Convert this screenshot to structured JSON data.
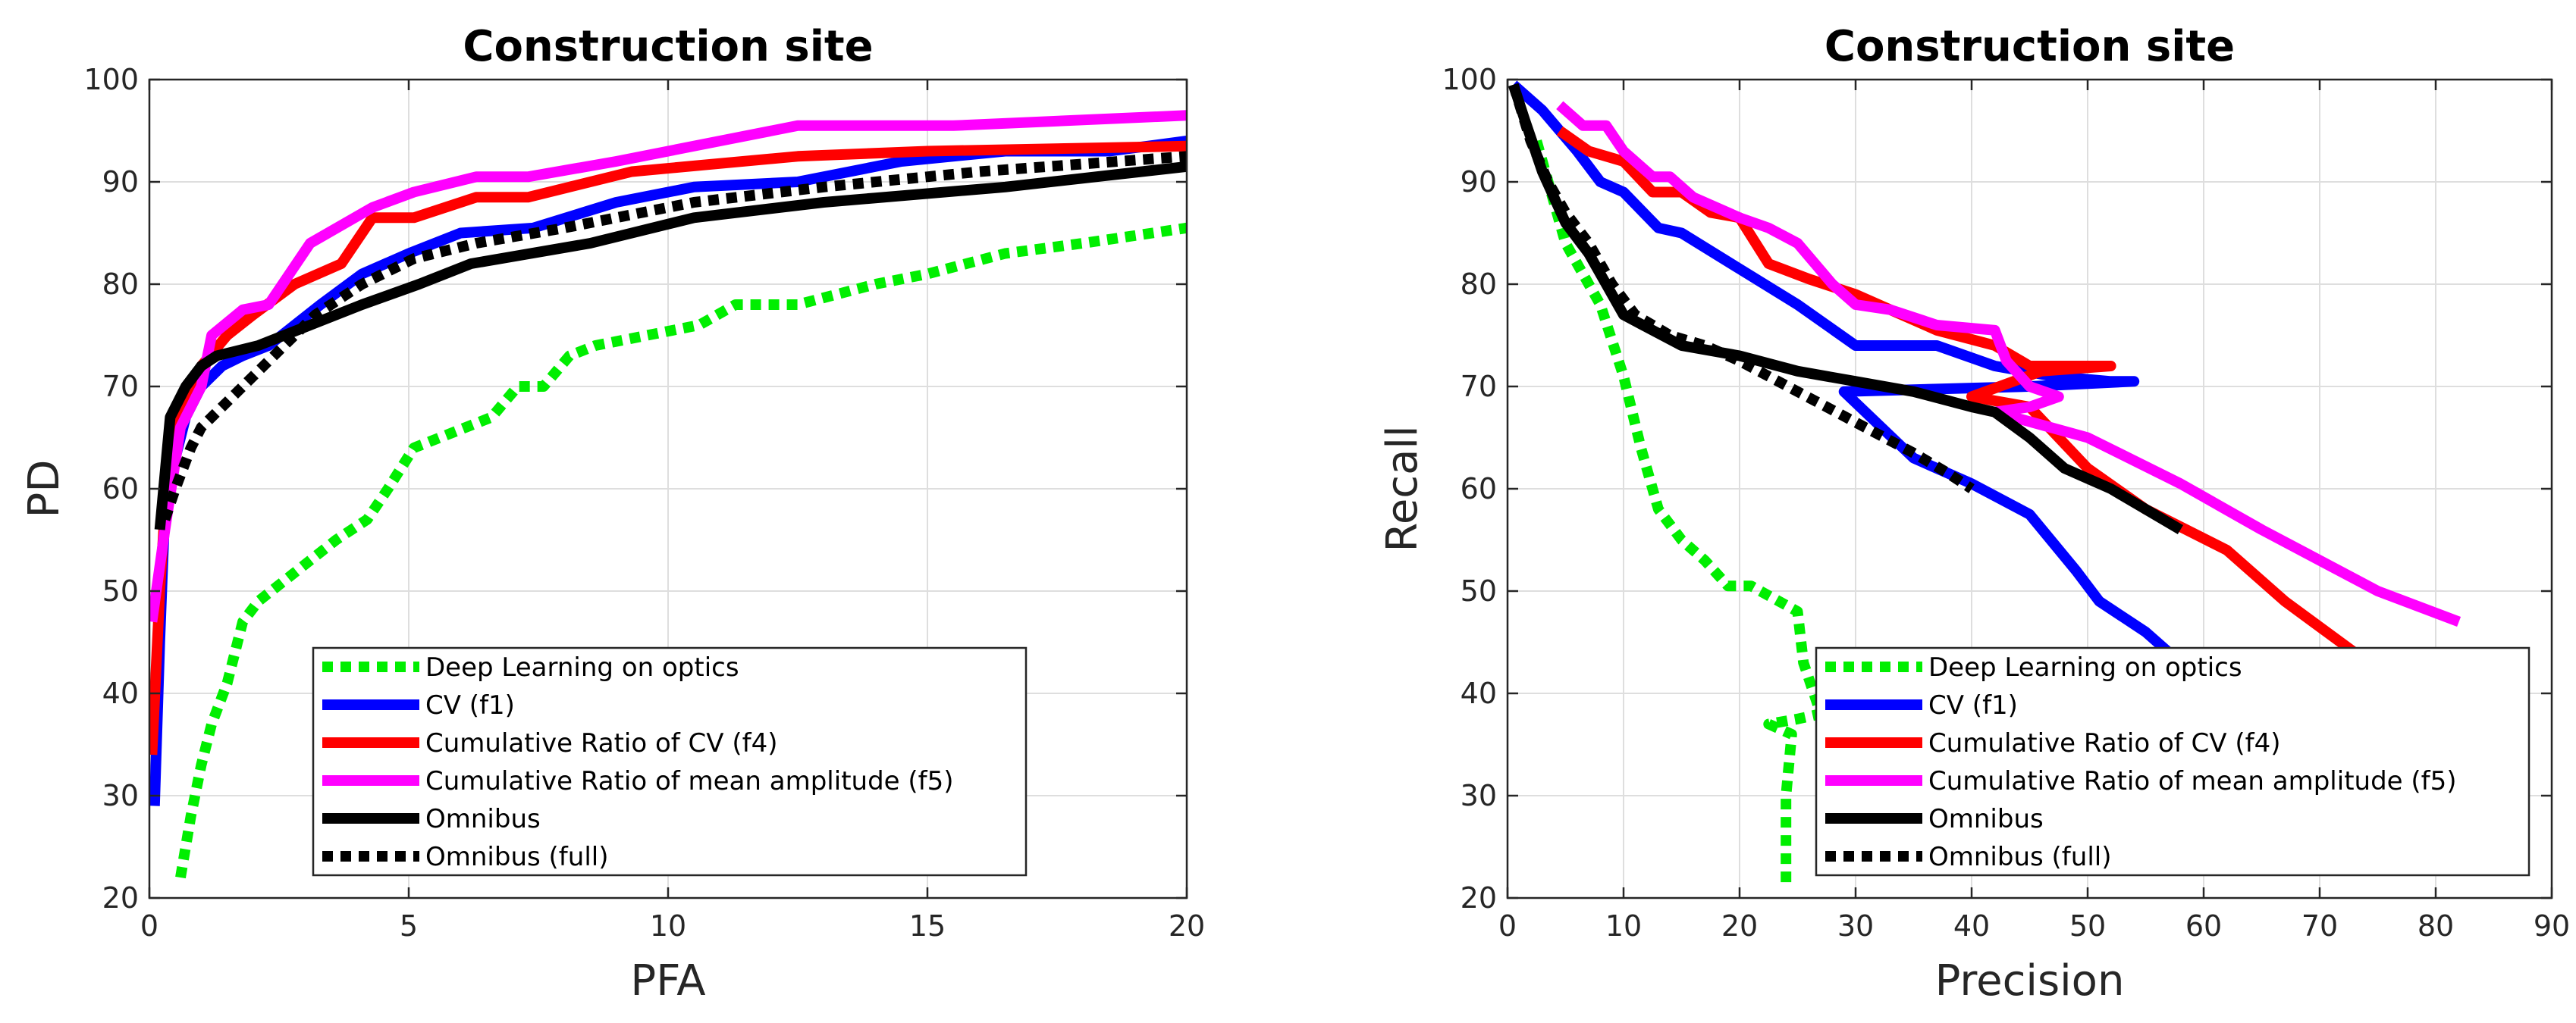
{
  "chart_data": [
    {
      "type": "line",
      "title": "Construction site",
      "xlabel": "PFA",
      "ylabel": "PD",
      "xlim": [
        0,
        20
      ],
      "ylim": [
        20,
        100
      ],
      "xticks": [
        0,
        5,
        10,
        15,
        20
      ],
      "yticks": [
        20,
        30,
        40,
        50,
        60,
        70,
        80,
        90,
        100
      ],
      "grid": true,
      "legend_position": "bottom-right",
      "series": [
        {
          "name": "Deep Learning on optics",
          "color": "#00ee00",
          "dash": "dotted",
          "points": [
            [
              0.6,
              22
            ],
            [
              0.8,
              28
            ],
            [
              1.0,
              33
            ],
            [
              1.2,
              37
            ],
            [
              1.5,
              41
            ],
            [
              1.8,
              47
            ],
            [
              2.1,
              49
            ],
            [
              2.6,
              51
            ],
            [
              3.1,
              53
            ],
            [
              3.6,
              55
            ],
            [
              4.2,
              57
            ],
            [
              4.6,
              60
            ],
            [
              5.1,
              64
            ],
            [
              5.6,
              65
            ],
            [
              6.1,
              66
            ],
            [
              6.6,
              67
            ],
            [
              7.1,
              70
            ],
            [
              7.6,
              70
            ],
            [
              8.1,
              73
            ],
            [
              8.6,
              74
            ],
            [
              9.6,
              75
            ],
            [
              10.6,
              76
            ],
            [
              11.3,
              78
            ],
            [
              12.5,
              78
            ],
            [
              14,
              80
            ],
            [
              15,
              81
            ],
            [
              16.5,
              83
            ],
            [
              18,
              84
            ],
            [
              20,
              85.5
            ]
          ]
        },
        {
          "name": "CV (f1)",
          "color": "#0000ff",
          "dash": "solid",
          "points": [
            [
              0.1,
              29
            ],
            [
              0.2,
              45
            ],
            [
              0.3,
              58
            ],
            [
              0.5,
              63
            ],
            [
              0.7,
              67
            ],
            [
              1.0,
              70
            ],
            [
              1.4,
              72
            ],
            [
              1.8,
              73
            ],
            [
              2.3,
              74
            ],
            [
              2.8,
              76
            ],
            [
              3.3,
              78
            ],
            [
              4.1,
              81
            ],
            [
              5.0,
              83
            ],
            [
              6.0,
              85
            ],
            [
              7.4,
              85.5
            ],
            [
              9.0,
              88
            ],
            [
              10.5,
              89.5
            ],
            [
              12.5,
              90
            ],
            [
              14.5,
              92
            ],
            [
              16.5,
              93
            ],
            [
              18.5,
              93
            ],
            [
              20,
              94
            ]
          ]
        },
        {
          "name": "Cumulative Ratio of CV (f4)",
          "color": "#ff0000",
          "dash": "solid",
          "points": [
            [
              0.05,
              34
            ],
            [
              0.2,
              50
            ],
            [
              0.4,
              66
            ],
            [
              0.7,
              69
            ],
            [
              1.0,
              72
            ],
            [
              1.5,
              75
            ],
            [
              2.0,
              77
            ],
            [
              2.8,
              80
            ],
            [
              3.7,
              82
            ],
            [
              4.3,
              86.5
            ],
            [
              5.1,
              86.5
            ],
            [
              6.3,
              88.5
            ],
            [
              7.3,
              88.5
            ],
            [
              9.3,
              91
            ],
            [
              12.5,
              92.5
            ],
            [
              15.0,
              93
            ],
            [
              20,
              93.5
            ]
          ]
        },
        {
          "name": "Cumulative Ratio of mean amplitude (f5)",
          "color": "#ff00ff",
          "dash": "solid",
          "points": [
            [
              0.05,
              47
            ],
            [
              0.3,
              56
            ],
            [
              0.6,
              66
            ],
            [
              1.0,
              70
            ],
            [
              1.2,
              75
            ],
            [
              1.8,
              77.5
            ],
            [
              2.3,
              78
            ],
            [
              3.1,
              84
            ],
            [
              4.3,
              87.5
            ],
            [
              5.1,
              89
            ],
            [
              6.3,
              90.5
            ],
            [
              7.3,
              90.5
            ],
            [
              9.0,
              92
            ],
            [
              11.0,
              94
            ],
            [
              12.5,
              95.5
            ],
            [
              15.5,
              95.5
            ],
            [
              20,
              96.5
            ]
          ]
        },
        {
          "name": "Omnibus",
          "color": "#000000",
          "dash": "solid",
          "points": [
            [
              0.2,
              56
            ],
            [
              0.4,
              67
            ],
            [
              0.7,
              70
            ],
            [
              1.0,
              72
            ],
            [
              1.3,
              73
            ],
            [
              2.1,
              74
            ],
            [
              3.1,
              76
            ],
            [
              4.1,
              78
            ],
            [
              5.2,
              80
            ],
            [
              6.2,
              82
            ],
            [
              8.5,
              84
            ],
            [
              10.5,
              86.5
            ],
            [
              13.0,
              88
            ],
            [
              16.5,
              89.5
            ],
            [
              20,
              91.5
            ]
          ]
        },
        {
          "name": "Omnibus (full)",
          "color": "#000000",
          "dash": "dotted",
          "points": [
            [
              0.3,
              57
            ],
            [
              0.5,
              60
            ],
            [
              0.8,
              64
            ],
            [
              1.0,
              66
            ],
            [
              1.4,
              68
            ],
            [
              2.0,
              71
            ],
            [
              2.6,
              74
            ],
            [
              3.2,
              77
            ],
            [
              4.1,
              80
            ],
            [
              5.1,
              82.5
            ],
            [
              6.3,
              84
            ],
            [
              8.0,
              85.5
            ],
            [
              10.5,
              88
            ],
            [
              13,
              89.5
            ],
            [
              16,
              91
            ],
            [
              20,
              92.5
            ]
          ]
        }
      ]
    },
    {
      "type": "line",
      "title": "Construction site",
      "xlabel": "Precision",
      "ylabel": "Recall",
      "xlim": [
        0,
        90
      ],
      "ylim": [
        20,
        100
      ],
      "xticks": [
        0,
        10,
        20,
        30,
        40,
        50,
        60,
        70,
        80,
        90
      ],
      "yticks": [
        20,
        30,
        40,
        50,
        60,
        70,
        80,
        90,
        100
      ],
      "grid": true,
      "legend_position": "bottom-right",
      "series": [
        {
          "name": "Deep Learning on optics",
          "color": "#00ee00",
          "dash": "dotted",
          "points": [
            [
              2.5,
              94
            ],
            [
              5,
              84
            ],
            [
              8,
              78
            ],
            [
              10,
              71
            ],
            [
              11.5,
              64
            ],
            [
              13,
              58
            ],
            [
              15,
              55
            ],
            [
              17,
              53
            ],
            [
              19,
              50.5
            ],
            [
              21,
              50.5
            ],
            [
              25,
              48
            ],
            [
              25.5,
              43
            ],
            [
              27,
              38
            ],
            [
              25,
              37.5
            ],
            [
              22.5,
              37
            ],
            [
              24.5,
              36
            ],
            [
              24,
              30
            ],
            [
              24,
              21
            ]
          ]
        },
        {
          "name": "CV (f1)",
          "color": "#0000ff",
          "dash": "solid",
          "points": [
            [
              0.5,
              99.5
            ],
            [
              3,
              97
            ],
            [
              6,
              93
            ],
            [
              8,
              90
            ],
            [
              10,
              89
            ],
            [
              13,
              85.5
            ],
            [
              15,
              85
            ],
            [
              20,
              81.5
            ],
            [
              25,
              78
            ],
            [
              30,
              74
            ],
            [
              37,
              74
            ],
            [
              42,
              72
            ],
            [
              47,
              71
            ],
            [
              52,
              70.5
            ],
            [
              54,
              70.5
            ],
            [
              45,
              70
            ],
            [
              29,
              69.5
            ],
            [
              35,
              63
            ],
            [
              40,
              60.5
            ],
            [
              45,
              57.5
            ],
            [
              49,
              52
            ],
            [
              51,
              49
            ],
            [
              55,
              46
            ],
            [
              57,
              44
            ]
          ]
        },
        {
          "name": "Cumulative Ratio of CV (f4)",
          "color": "#ff0000",
          "dash": "solid",
          "points": [
            [
              4.5,
              95
            ],
            [
              7,
              93
            ],
            [
              10,
              92
            ],
            [
              12.5,
              89
            ],
            [
              15,
              89
            ],
            [
              17.5,
              87
            ],
            [
              20,
              86.5
            ],
            [
              22.5,
              82
            ],
            [
              26,
              80.5
            ],
            [
              30,
              79
            ],
            [
              33,
              77.5
            ],
            [
              37,
              75.5
            ],
            [
              42,
              74
            ],
            [
              45,
              72
            ],
            [
              47,
              72
            ],
            [
              50,
              72
            ],
            [
              52,
              72
            ],
            [
              46,
              71.5
            ],
            [
              40,
              69
            ],
            [
              45,
              68
            ],
            [
              50,
              62
            ],
            [
              55,
              58
            ],
            [
              62,
              54
            ],
            [
              67,
              49
            ],
            [
              73,
              44
            ]
          ]
        },
        {
          "name": "Cumulative Ratio of mean amplitude (f5)",
          "color": "#ff00ff",
          "dash": "solid",
          "points": [
            [
              4.5,
              97.5
            ],
            [
              6.5,
              95.5
            ],
            [
              8.5,
              95.5
            ],
            [
              10,
              93
            ],
            [
              12.5,
              90.5
            ],
            [
              14,
              90.5
            ],
            [
              16,
              88.5
            ],
            [
              20,
              86.5
            ],
            [
              22.5,
              85.5
            ],
            [
              25,
              84
            ],
            [
              28,
              80
            ],
            [
              30,
              78
            ],
            [
              33,
              77.5
            ],
            [
              37,
              76
            ],
            [
              42,
              75.5
            ],
            [
              43,
              72.5
            ],
            [
              45,
              70
            ],
            [
              47.5,
              69
            ],
            [
              45,
              68
            ],
            [
              42,
              67.5
            ],
            [
              50,
              65
            ],
            [
              58,
              60.5
            ],
            [
              65,
              56
            ],
            [
              75,
              50
            ],
            [
              82,
              47
            ]
          ]
        },
        {
          "name": "Omnibus",
          "color": "#000000",
          "dash": "solid",
          "points": [
            [
              0.5,
              99.5
            ],
            [
              1.5,
              96
            ],
            [
              3,
              91
            ],
            [
              5,
              86
            ],
            [
              7,
              83
            ],
            [
              9,
              79
            ],
            [
              10,
              77
            ],
            [
              15,
              74
            ],
            [
              20,
              73
            ],
            [
              25,
              71.5
            ],
            [
              30,
              70.5
            ],
            [
              35,
              69.5
            ],
            [
              40,
              68
            ],
            [
              42,
              67.5
            ],
            [
              45,
              65
            ],
            [
              48,
              62
            ],
            [
              52,
              60
            ],
            [
              55,
              58
            ],
            [
              58,
              56
            ]
          ]
        },
        {
          "name": "Omnibus (full)",
          "color": "#000000",
          "dash": "dotted",
          "points": [
            [
              0.5,
              99.5
            ],
            [
              2,
              94
            ],
            [
              3.5,
              90
            ],
            [
              5,
              87
            ],
            [
              7,
              84
            ],
            [
              9,
              80
            ],
            [
              11,
              77
            ],
            [
              14,
              75
            ],
            [
              17,
              74
            ],
            [
              20,
              72.5
            ],
            [
              25,
              69.5
            ],
            [
              30,
              66.5
            ],
            [
              35,
              63.5
            ],
            [
              38,
              61.5
            ],
            [
              40,
              60
            ]
          ]
        }
      ]
    }
  ]
}
